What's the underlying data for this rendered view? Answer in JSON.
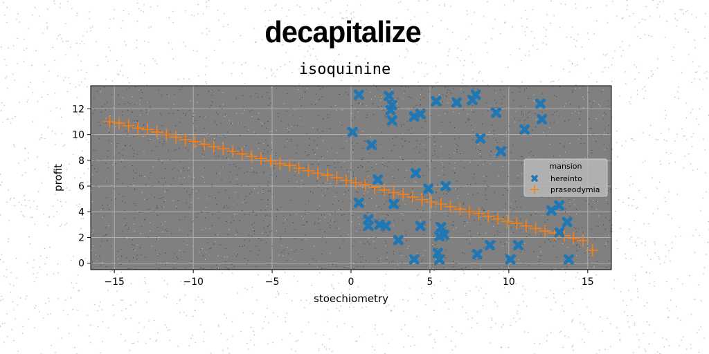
{
  "header": {
    "suptitle": "decapitalize",
    "title": "isoquinine"
  },
  "colors": {
    "background": "#ffffff",
    "plot_area": "#808080",
    "grid": "#b0b0b0",
    "series_hereinto": "#1f77b4",
    "series_praseodymia": "#ff7f0e"
  },
  "chart_data": {
    "type": "scatter",
    "title": "isoquinine",
    "xlabel": "stoechiometry",
    "ylabel": "profit",
    "xlim": [
      -16.5,
      16.5
    ],
    "ylim": [
      -0.5,
      13.8
    ],
    "xticks": [
      -15,
      -10,
      -5,
      0,
      5,
      10,
      15
    ],
    "yticks": [
      0,
      2,
      4,
      6,
      8,
      10,
      12
    ],
    "xtick_labels": [
      "−15",
      "−10",
      "−5",
      "0",
      "5",
      "10",
      "15"
    ],
    "ytick_labels": [
      "0",
      "2",
      "4",
      "6",
      "8",
      "10",
      "12"
    ],
    "grid": true,
    "legend": {
      "title": "mansion",
      "placement": "center-right",
      "entries": [
        "hereinto",
        "praseodymia"
      ]
    },
    "series": [
      {
        "name": "hereinto",
        "marker": "x",
        "points": [
          [
            0.5,
            13.1
          ],
          [
            2.4,
            13.0
          ],
          [
            2.6,
            12.3
          ],
          [
            2.5,
            11.9
          ],
          [
            2.6,
            11.1
          ],
          [
            4.4,
            11.6
          ],
          [
            4.0,
            11.4
          ],
          [
            5.4,
            12.6
          ],
          [
            6.7,
            12.5
          ],
          [
            7.7,
            12.7
          ],
          [
            7.9,
            13.1
          ],
          [
            9.2,
            11.7
          ],
          [
            12.0,
            12.4
          ],
          [
            12.1,
            11.2
          ],
          [
            11.0,
            10.4
          ],
          [
            0.1,
            10.2
          ],
          [
            1.3,
            9.2
          ],
          [
            8.2,
            9.7
          ],
          [
            9.5,
            8.7
          ],
          [
            4.1,
            7.0
          ],
          [
            1.7,
            6.5
          ],
          [
            6.0,
            6.0
          ],
          [
            4.9,
            5.8
          ],
          [
            0.5,
            4.7
          ],
          [
            2.7,
            4.6
          ],
          [
            13.2,
            4.5
          ],
          [
            12.7,
            4.1
          ],
          [
            1.1,
            3.4
          ],
          [
            1.1,
            2.9
          ],
          [
            1.8,
            3.0
          ],
          [
            2.2,
            2.9
          ],
          [
            4.4,
            2.9
          ],
          [
            5.7,
            2.8
          ],
          [
            13.7,
            3.2
          ],
          [
            13.2,
            2.4
          ],
          [
            5.6,
            2.1
          ],
          [
            5.9,
            2.2
          ],
          [
            3.0,
            1.8
          ],
          [
            8.8,
            1.4
          ],
          [
            10.6,
            1.4
          ],
          [
            5.5,
            0.8
          ],
          [
            5.6,
            0.3
          ],
          [
            4.0,
            0.3
          ],
          [
            8.0,
            0.7
          ],
          [
            10.1,
            0.3
          ],
          [
            13.8,
            0.3
          ]
        ]
      },
      {
        "name": "praseodymia",
        "marker": "+",
        "points": [
          [
            -15.0,
            11.0
          ],
          [
            -14.4,
            10.87
          ],
          [
            -13.8,
            10.74
          ],
          [
            -13.2,
            10.61
          ],
          [
            -12.6,
            10.48
          ],
          [
            -12.0,
            10.35
          ],
          [
            -11.4,
            10.22
          ],
          [
            -10.8,
            10.09
          ],
          [
            -10.2,
            9.96
          ],
          [
            -9.6,
            9.83
          ],
          [
            -9.0,
            9.7
          ],
          [
            -8.4,
            9.57
          ],
          [
            -7.8,
            9.44
          ],
          [
            -7.2,
            9.31
          ],
          [
            -6.6,
            9.18
          ],
          [
            -6.0,
            9.05
          ],
          [
            -5.4,
            8.92
          ],
          [
            -4.8,
            8.79
          ],
          [
            -4.2,
            8.66
          ],
          [
            -3.6,
            8.53
          ],
          [
            -15.3,
            11.0
          ],
          [
            -14.7,
            10.9
          ],
          [
            -14.1,
            10.7
          ],
          [
            -13.5,
            10.5
          ],
          [
            -12.9,
            10.4
          ],
          [
            -12.3,
            10.2
          ],
          [
            -11.7,
            10.0
          ],
          [
            -11.1,
            9.8
          ],
          [
            -10.5,
            9.6
          ],
          [
            -9.9,
            9.45
          ],
          [
            -9.3,
            9.25
          ],
          [
            -8.7,
            9.05
          ],
          [
            -8.1,
            8.9
          ],
          [
            -7.5,
            8.7
          ],
          [
            -6.9,
            8.5
          ],
          [
            -6.3,
            8.3
          ],
          [
            -5.7,
            8.15
          ],
          [
            -5.1,
            7.95
          ],
          [
            -4.5,
            7.75
          ],
          [
            -3.9,
            7.6
          ],
          [
            -3.3,
            7.4
          ],
          [
            -2.7,
            7.2
          ],
          [
            -2.1,
            7.0
          ],
          [
            -1.5,
            6.85
          ],
          [
            -0.9,
            6.65
          ],
          [
            -0.3,
            6.45
          ],
          [
            0.3,
            6.25
          ],
          [
            0.9,
            6.1
          ],
          [
            1.5,
            5.9
          ],
          [
            2.1,
            5.7
          ],
          [
            2.7,
            5.5
          ],
          [
            3.3,
            5.35
          ],
          [
            3.9,
            5.15
          ],
          [
            4.5,
            4.95
          ],
          [
            5.1,
            4.75
          ],
          [
            5.7,
            4.6
          ],
          [
            6.3,
            4.4
          ],
          [
            6.9,
            4.2
          ],
          [
            7.5,
            4.0
          ],
          [
            8.1,
            3.85
          ],
          [
            8.7,
            3.65
          ],
          [
            9.3,
            3.45
          ],
          [
            9.9,
            3.25
          ],
          [
            10.5,
            3.1
          ],
          [
            11.1,
            2.9
          ],
          [
            11.7,
            2.7
          ],
          [
            12.3,
            2.5
          ],
          [
            12.9,
            2.35
          ],
          [
            13.5,
            2.15
          ],
          [
            14.1,
            1.95
          ],
          [
            14.7,
            1.75
          ],
          [
            15.3,
            1.0
          ]
        ]
      }
    ]
  }
}
